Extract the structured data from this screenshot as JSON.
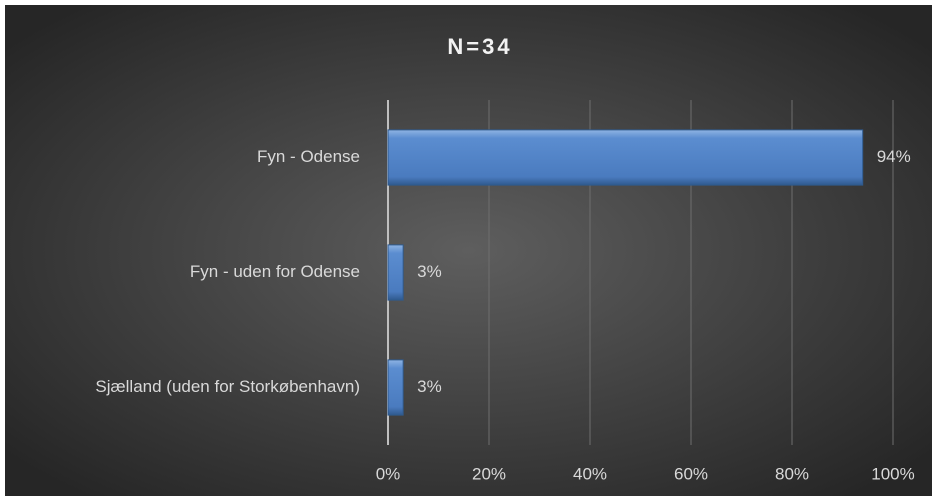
{
  "chart_data": {
    "type": "bar",
    "orientation": "horizontal",
    "title": "N=34",
    "categories": [
      "Fyn - Odense",
      "Fyn - uden for Odense",
      "Sjælland (uden for Storkøbenhavn)"
    ],
    "values": [
      94,
      3,
      3
    ],
    "value_labels": [
      "94%",
      "3%",
      "3%"
    ],
    "color": "#4f81bd",
    "xlim": [
      0,
      100
    ],
    "xticks": [
      {
        "value": 0,
        "label": "0%"
      },
      {
        "value": 20,
        "label": "20%"
      },
      {
        "value": 40,
        "label": "40%"
      },
      {
        "value": 60,
        "label": "60%"
      },
      {
        "value": 80,
        "label": "80%"
      },
      {
        "value": 100,
        "label": "100%"
      }
    ],
    "grid": true
  }
}
